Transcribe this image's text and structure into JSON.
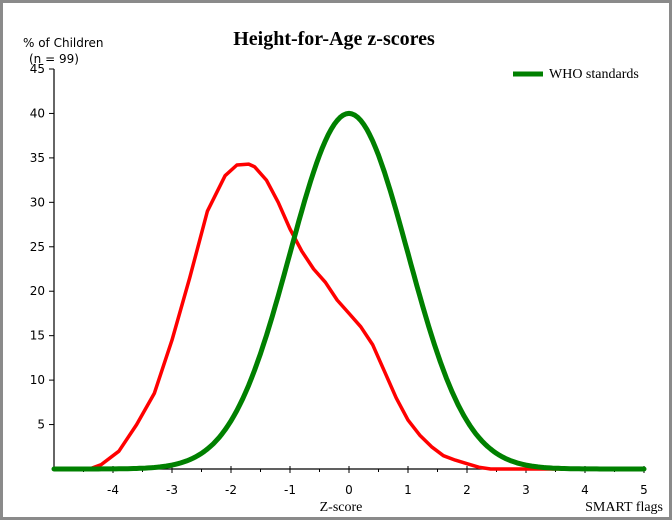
{
  "chart_data": {
    "type": "line",
    "title": "Height-for-Age z-scores",
    "ylabel": "% of Children",
    "ylabel_n": "(n = 99)",
    "xlabel": "Z-score",
    "corner_note": "SMART flags",
    "xlim": [
      -5,
      5
    ],
    "ylim": [
      0,
      45
    ],
    "xticks": [
      -4,
      -3,
      -2,
      -1,
      0,
      1,
      2,
      3,
      4,
      5
    ],
    "yticks": [
      5,
      10,
      15,
      20,
      25,
      30,
      35,
      40,
      45
    ],
    "grid": false,
    "legend_position": "top-right",
    "series": [
      {
        "name": "",
        "color": "#ff0000",
        "x": [
          -5,
          -4.4,
          -4.2,
          -3.9,
          -3.6,
          -3.3,
          -3.0,
          -2.7,
          -2.4,
          -2.1,
          -1.9,
          -1.7,
          -1.6,
          -1.4,
          -1.2,
          -1.0,
          -0.8,
          -0.6,
          -0.4,
          -0.2,
          0.0,
          0.2,
          0.4,
          0.6,
          0.8,
          1.0,
          1.2,
          1.4,
          1.6,
          1.8,
          2.0,
          2.2,
          2.4,
          2.6,
          3.0,
          5
        ],
        "y": [
          0,
          0,
          0.5,
          2.0,
          5.0,
          8.5,
          14.5,
          21.5,
          29.0,
          33.0,
          34.2,
          34.3,
          34.0,
          32.5,
          30.0,
          27.0,
          24.5,
          22.5,
          21.0,
          19.0,
          17.5,
          16.0,
          14.0,
          11.0,
          8.0,
          5.5,
          3.8,
          2.5,
          1.5,
          1.0,
          0.6,
          0.2,
          0,
          0,
          0,
          0
        ]
      },
      {
        "name": "WHO standards",
        "color": "#008000",
        "distribution": "normal",
        "mean": 0,
        "sd": 1,
        "peak": 40
      }
    ]
  }
}
